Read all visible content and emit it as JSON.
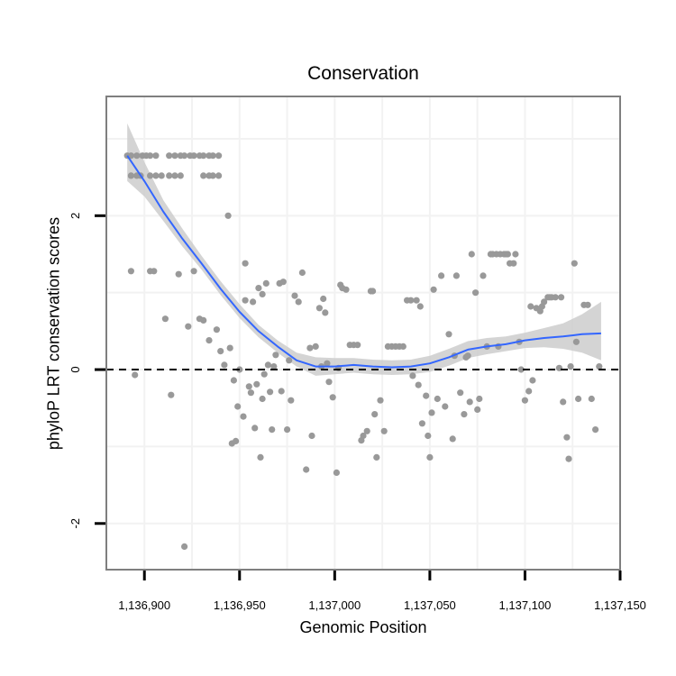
{
  "chart_data": {
    "type": "scatter",
    "title": "Conservation",
    "xlabel": "Genomic Position",
    "ylabel": "phyloP LRT conservation scores",
    "xlim": [
      1136880,
      1137150
    ],
    "ylim": [
      -2.6,
      3.55
    ],
    "x_ticks": [
      1136900,
      1136950,
      1137000,
      1137050,
      1137100,
      1137150
    ],
    "x_tick_labels": [
      "1,136,900",
      "1,136,950",
      "1,137,000",
      "1,137,050",
      "1,137,100",
      "1,137,150"
    ],
    "y_ticks": [
      -2,
      0,
      2
    ],
    "y_tick_labels": [
      "-2",
      "0",
      "2"
    ],
    "reference_line": {
      "y": 0,
      "style": "dashed"
    },
    "colors": {
      "points": "#999999",
      "smooth": "#3366ff",
      "ribbon": "#cccccc",
      "grid": "#f2f2f2",
      "frame": "#7f7f7f"
    },
    "series": [
      {
        "name": "phyloP LRT",
        "kind": "points",
        "points": [
          [
            1136891,
            2.78
          ],
          [
            1136893,
            2.78
          ],
          [
            1136896,
            2.78
          ],
          [
            1136899,
            2.78
          ],
          [
            1136901,
            2.78
          ],
          [
            1136903,
            2.78
          ],
          [
            1136906,
            2.78
          ],
          [
            1136913,
            2.78
          ],
          [
            1136916,
            2.78
          ],
          [
            1136919,
            2.78
          ],
          [
            1136921,
            2.78
          ],
          [
            1136924,
            2.78
          ],
          [
            1136926,
            2.78
          ],
          [
            1136929,
            2.78
          ],
          [
            1136931,
            2.78
          ],
          [
            1136934,
            2.78
          ],
          [
            1136936,
            2.78
          ],
          [
            1136939,
            2.78
          ],
          [
            1136893,
            2.52
          ],
          [
            1136896,
            2.52
          ],
          [
            1136898,
            2.52
          ],
          [
            1136903,
            2.52
          ],
          [
            1136906,
            2.52
          ],
          [
            1136909,
            2.52
          ],
          [
            1136913,
            2.52
          ],
          [
            1136916,
            2.52
          ],
          [
            1136919,
            2.52
          ],
          [
            1136931,
            2.52
          ],
          [
            1136934,
            2.52
          ],
          [
            1136936,
            2.52
          ],
          [
            1136939,
            2.52
          ],
          [
            1136895,
            -0.07
          ],
          [
            1136893,
            1.28
          ],
          [
            1136903,
            1.28
          ],
          [
            1136905,
            1.28
          ],
          [
            1136911,
            0.66
          ],
          [
            1136914,
            -0.33
          ],
          [
            1136918,
            1.24
          ],
          [
            1136921,
            -2.3
          ],
          [
            1136923,
            0.56
          ],
          [
            1136926,
            1.28
          ],
          [
            1136929,
            0.66
          ],
          [
            1136931,
            0.64
          ],
          [
            1136934,
            0.38
          ],
          [
            1136938,
            0.52
          ],
          [
            1136940,
            0.24
          ],
          [
            1136942,
            0.06
          ],
          [
            1136944,
            2.0
          ],
          [
            1136945,
            0.28
          ],
          [
            1136946,
            -0.96
          ],
          [
            1136948,
            -0.93
          ],
          [
            1136949,
            -0.48
          ],
          [
            1136947,
            -0.14
          ],
          [
            1136950,
            0.0
          ],
          [
            1136952,
            -0.61
          ],
          [
            1136953,
            1.38
          ],
          [
            1136953,
            0.9
          ],
          [
            1136955,
            -0.22
          ],
          [
            1136956,
            -0.3
          ],
          [
            1136958,
            -0.76
          ],
          [
            1136957,
            0.88
          ],
          [
            1136959,
            -0.19
          ],
          [
            1136961,
            -1.14
          ],
          [
            1136962,
            -0.38
          ],
          [
            1136960,
            1.06
          ],
          [
            1136962,
            0.98
          ],
          [
            1136964,
            1.12
          ],
          [
            1136963,
            -0.06
          ],
          [
            1136965,
            0.06
          ],
          [
            1136966,
            -0.29
          ],
          [
            1136967,
            -0.78
          ],
          [
            1136968,
            0.04
          ],
          [
            1136969,
            0.19
          ],
          [
            1136971,
            1.12
          ],
          [
            1136972,
            -0.28
          ],
          [
            1136973,
            1.14
          ],
          [
            1136975,
            -0.78
          ],
          [
            1136976,
            0.12
          ],
          [
            1136977,
            -0.4
          ],
          [
            1136979,
            0.96
          ],
          [
            1136981,
            0.88
          ],
          [
            1136983,
            1.26
          ],
          [
            1136985,
            -1.3
          ],
          [
            1136987,
            0.28
          ],
          [
            1136988,
            -0.86
          ],
          [
            1136990,
            0.3
          ],
          [
            1136992,
            0.8
          ],
          [
            1136993,
            0.04
          ],
          [
            1136994,
            0.92
          ],
          [
            1136995,
            0.74
          ],
          [
            1136996,
            0.08
          ],
          [
            1136997,
            -0.16
          ],
          [
            1136999,
            -0.36
          ],
          [
            1137001,
            -1.34
          ],
          [
            1137002,
            0.02
          ],
          [
            1137003,
            1.1
          ],
          [
            1137004,
            1.06
          ],
          [
            1137006,
            1.04
          ],
          [
            1137008,
            0.32
          ],
          [
            1137010,
            0.32
          ],
          [
            1137012,
            0.32
          ],
          [
            1137014,
            -0.92
          ],
          [
            1137015,
            -0.86
          ],
          [
            1137017,
            -0.8
          ],
          [
            1137019,
            1.02
          ],
          [
            1137020,
            1.02
          ],
          [
            1137021,
            -0.58
          ],
          [
            1137022,
            -1.14
          ],
          [
            1137024,
            -0.4
          ],
          [
            1137026,
            -0.8
          ],
          [
            1137028,
            0.3
          ],
          [
            1137030,
            0.3
          ],
          [
            1137032,
            0.3
          ],
          [
            1137034,
            0.3
          ],
          [
            1137036,
            0.3
          ],
          [
            1137038,
            0.9
          ],
          [
            1137040,
            0.9
          ],
          [
            1137041,
            -0.08
          ],
          [
            1137043,
            0.9
          ],
          [
            1137044,
            -0.2
          ],
          [
            1137045,
            0.82
          ],
          [
            1137046,
            -0.7
          ],
          [
            1137048,
            -0.34
          ],
          [
            1137049,
            -0.86
          ],
          [
            1137050,
            -1.14
          ],
          [
            1137051,
            -0.56
          ],
          [
            1137052,
            1.04
          ],
          [
            1137054,
            -0.38
          ],
          [
            1137056,
            1.22
          ],
          [
            1137058,
            -0.48
          ],
          [
            1137060,
            0.46
          ],
          [
            1137062,
            -0.9
          ],
          [
            1137063,
            0.18
          ],
          [
            1137064,
            1.22
          ],
          [
            1137066,
            -0.3
          ],
          [
            1137068,
            -0.58
          ],
          [
            1137069,
            0.16
          ],
          [
            1137070,
            0.18
          ],
          [
            1137071,
            -0.42
          ],
          [
            1137072,
            1.5
          ],
          [
            1137074,
            1.0
          ],
          [
            1137075,
            -0.52
          ],
          [
            1137076,
            -0.38
          ],
          [
            1137078,
            1.22
          ],
          [
            1137080,
            0.3
          ],
          [
            1137082,
            1.5
          ],
          [
            1137083,
            1.5
          ],
          [
            1137085,
            1.5
          ],
          [
            1137086,
            0.3
          ],
          [
            1137087,
            1.5
          ],
          [
            1137089,
            1.5
          ],
          [
            1137090,
            1.5
          ],
          [
            1137091,
            1.5
          ],
          [
            1137092,
            1.38
          ],
          [
            1137094,
            1.38
          ],
          [
            1137095,
            1.5
          ],
          [
            1137097,
            0.36
          ],
          [
            1137098,
            0.0
          ],
          [
            1137100,
            -0.4
          ],
          [
            1137102,
            -0.28
          ],
          [
            1137103,
            0.82
          ],
          [
            1137104,
            -0.14
          ],
          [
            1137106,
            0.8
          ],
          [
            1137108,
            0.76
          ],
          [
            1137109,
            0.82
          ],
          [
            1137110,
            0.88
          ],
          [
            1137112,
            0.94
          ],
          [
            1137113,
            0.94
          ],
          [
            1137114,
            0.94
          ],
          [
            1137116,
            0.94
          ],
          [
            1137118,
            0.02
          ],
          [
            1137119,
            0.94
          ],
          [
            1137120,
            -0.42
          ],
          [
            1137122,
            -0.88
          ],
          [
            1137123,
            -1.16
          ],
          [
            1137124,
            0.04
          ],
          [
            1137126,
            1.38
          ],
          [
            1137127,
            0.36
          ],
          [
            1137128,
            -0.38
          ],
          [
            1137131,
            0.84
          ],
          [
            1137133,
            0.84
          ],
          [
            1137135,
            -0.38
          ],
          [
            1137137,
            -0.78
          ],
          [
            1137139,
            0.04
          ]
        ]
      },
      {
        "name": "loess smooth",
        "kind": "line",
        "x": [
          1136891,
          1136900,
          1136910,
          1136920,
          1136930,
          1136940,
          1136950,
          1136960,
          1136970,
          1136980,
          1136990,
          1137000,
          1137010,
          1137020,
          1137030,
          1137040,
          1137050,
          1137060,
          1137070,
          1137080,
          1137090,
          1137100,
          1137110,
          1137120,
          1137130,
          1137140
        ],
        "y": [
          2.78,
          2.45,
          2.05,
          1.7,
          1.38,
          1.05,
          0.75,
          0.5,
          0.3,
          0.12,
          0.04,
          0.04,
          0.06,
          0.04,
          0.03,
          0.04,
          0.08,
          0.16,
          0.26,
          0.3,
          0.33,
          0.38,
          0.41,
          0.43,
          0.46,
          0.47
        ],
        "ci_lower": [
          2.45,
          2.25,
          1.93,
          1.6,
          1.3,
          0.97,
          0.67,
          0.42,
          0.22,
          0.04,
          -0.08,
          -0.06,
          -0.04,
          -0.06,
          -0.07,
          -0.06,
          -0.03,
          0.05,
          0.15,
          0.2,
          0.24,
          0.28,
          0.29,
          0.27,
          0.22,
          0.12
        ],
        "ci_upper": [
          3.2,
          2.7,
          2.2,
          1.83,
          1.48,
          1.15,
          0.85,
          0.58,
          0.38,
          0.22,
          0.16,
          0.15,
          0.15,
          0.13,
          0.12,
          0.13,
          0.18,
          0.27,
          0.37,
          0.41,
          0.43,
          0.48,
          0.54,
          0.6,
          0.72,
          0.88
        ]
      }
    ]
  }
}
